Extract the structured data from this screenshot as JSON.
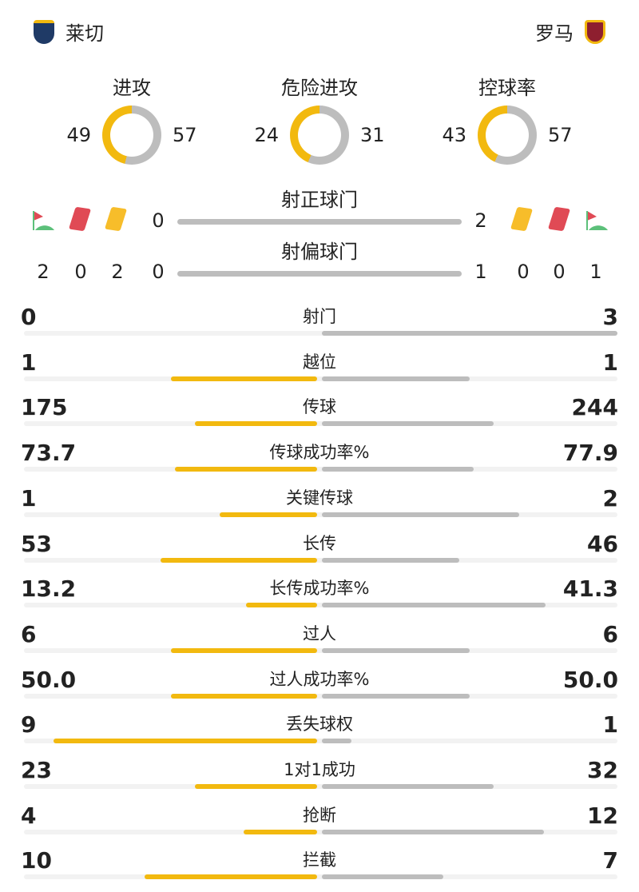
{
  "home": {
    "name": "莱切"
  },
  "away": {
    "name": "罗马"
  },
  "colors": {
    "home": "#f2b90f",
    "away": "#bdbdbd",
    "red": "#e04a55",
    "yellow": "#f7bd2a",
    "corner": "#5cc07a"
  },
  "donuts": [
    {
      "label": "进攻",
      "home": 49,
      "away": 57
    },
    {
      "label": "危险进攻",
      "home": 24,
      "away": 31
    },
    {
      "label": "控球率",
      "home": 43,
      "away": 57
    }
  ],
  "shots_on": {
    "label": "射正球门",
    "home": 0,
    "away": 2
  },
  "shots_off": {
    "label": "射偏球门",
    "home": 0,
    "away": 1
  },
  "home_events": {
    "corners": 2,
    "red_cards": 0,
    "yellow_cards": 2
  },
  "away_events": {
    "corners": 1,
    "red_cards": 0,
    "yellow_cards": 0
  },
  "stats": [
    {
      "label": "射门",
      "home": "0",
      "away": "3"
    },
    {
      "label": "越位",
      "home": "1",
      "away": "1"
    },
    {
      "label": "传球",
      "home": "175",
      "away": "244"
    },
    {
      "label": "传球成功率%",
      "home": "73.7",
      "away": "77.9"
    },
    {
      "label": "关键传球",
      "home": "1",
      "away": "2"
    },
    {
      "label": "长传",
      "home": "53",
      "away": "46"
    },
    {
      "label": "长传成功率%",
      "home": "13.2",
      "away": "41.3"
    },
    {
      "label": "过人",
      "home": "6",
      "away": "6"
    },
    {
      "label": "过人成功率%",
      "home": "50.0",
      "away": "50.0"
    },
    {
      "label": "丢失球权",
      "home": "9",
      "away": "1"
    },
    {
      "label": "1对1成功",
      "home": "23",
      "away": "32"
    },
    {
      "label": "抢断",
      "home": "4",
      "away": "12"
    },
    {
      "label": "拦截",
      "home": "10",
      "away": "7"
    }
  ]
}
